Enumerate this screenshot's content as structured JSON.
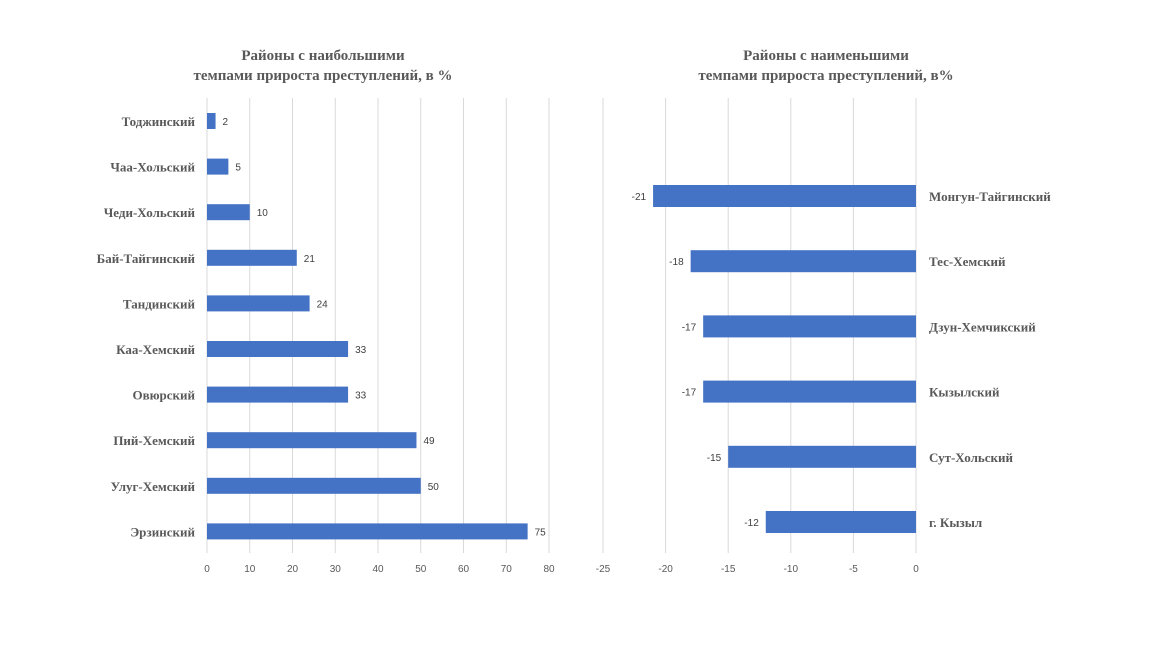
{
  "chart_data": [
    {
      "type": "bar",
      "orientation": "horizontal",
      "title": [
        "Районы с наибольшими",
        "темпами прироста преступлений, в %"
      ],
      "categories": [
        "Тоджинский",
        "Чаа-Хольский",
        "Чеди-Хольский",
        "Бай-Тайгинский",
        "Тандинский",
        "Каа-Хемский",
        "Овюрский",
        "Пий-Хемский",
        "Улуг-Хемский",
        "Эрзинский"
      ],
      "values": [
        2,
        5,
        10,
        21,
        24,
        33,
        33,
        49,
        50,
        75
      ],
      "xlim": [
        0,
        80
      ],
      "xticks": [
        0,
        10,
        20,
        30,
        40,
        50,
        60,
        70,
        80
      ],
      "grid": true,
      "data_labels": true,
      "bar_color": "#4472c4"
    },
    {
      "type": "bar",
      "orientation": "horizontal",
      "title": [
        "Районы с наименьшими",
        "темпами прироста преступлений, в%"
      ],
      "categories": [
        "Монгун-Тайгинский",
        "Тес-Хемский",
        "Дзун-Хемчикский",
        "Кызылский",
        "Сут-Хольский",
        "г. Кызыл"
      ],
      "values": [
        -21,
        -18,
        -17,
        -17,
        -15,
        -12
      ],
      "xlim": [
        -25,
        0
      ],
      "xticks": [
        -25,
        -20,
        -15,
        -10,
        -5,
        0
      ],
      "grid": true,
      "data_labels": true,
      "bar_color": "#4472c4"
    }
  ]
}
